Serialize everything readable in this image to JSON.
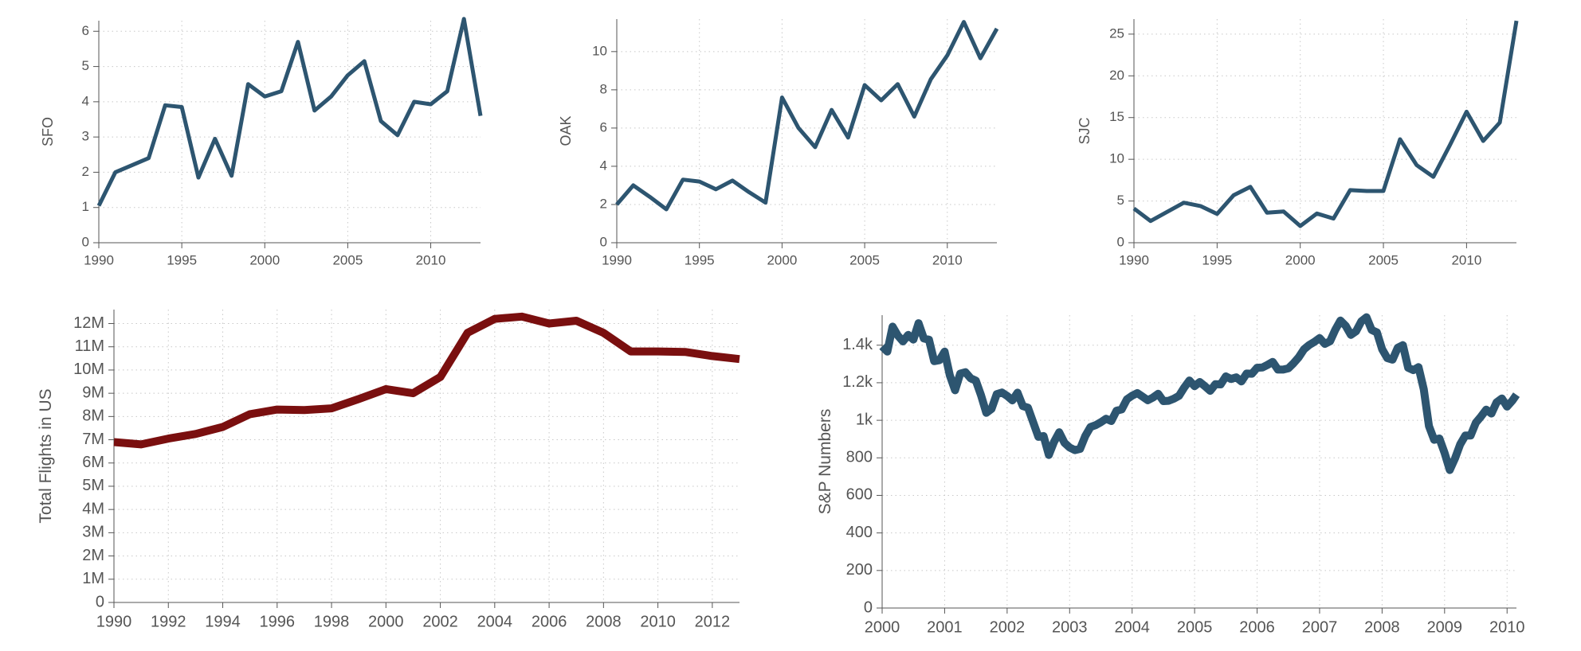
{
  "chart_data": [
    {
      "id": "sfo",
      "type": "line",
      "ylabel": "SFO",
      "xlim": [
        1990,
        2013
      ],
      "ylim": [
        0,
        6.3
      ],
      "xticks": [
        1990,
        1995,
        2000,
        2005,
        2010
      ],
      "xtick_labels": [
        "1990",
        "1995",
        "2000",
        "2005",
        "2010"
      ],
      "yticks": [
        0,
        1,
        2,
        3,
        4,
        5,
        6
      ],
      "ytick_labels": [
        "0",
        "1",
        "2",
        "3",
        "4",
        "5",
        "6"
      ],
      "grid": true,
      "color": "#2d5570",
      "x": [
        1990,
        1991,
        1992,
        1993,
        1994,
        1995,
        1996,
        1997,
        1998,
        1999,
        2000,
        2001,
        2002,
        2003,
        2004,
        2005,
        2006,
        2007,
        2008,
        2009,
        2010,
        2011,
        2012,
        2013
      ],
      "y": [
        1.05,
        2.0,
        2.2,
        2.4,
        3.9,
        3.85,
        1.85,
        2.95,
        1.9,
        4.5,
        4.15,
        4.3,
        5.7,
        3.75,
        4.15,
        4.75,
        5.15,
        3.45,
        3.05,
        4.0,
        3.93,
        4.3,
        6.35,
        3.6
      ]
    },
    {
      "id": "oak",
      "type": "line",
      "ylabel": "OAK",
      "xlim": [
        1990,
        2013
      ],
      "ylim": [
        0,
        11.7
      ],
      "xticks": [
        1990,
        1995,
        2000,
        2005,
        2010
      ],
      "xtick_labels": [
        "1990",
        "1995",
        "2000",
        "2005",
        "2010"
      ],
      "yticks": [
        0,
        2,
        4,
        6,
        8,
        10
      ],
      "ytick_labels": [
        "0",
        "2",
        "4",
        "6",
        "8",
        "10"
      ],
      "grid": true,
      "color": "#2d5570",
      "x": [
        1990,
        1991,
        1992,
        1993,
        1994,
        1995,
        1996,
        1997,
        1998,
        1999,
        2000,
        2001,
        2002,
        2003,
        2004,
        2005,
        2006,
        2007,
        2008,
        2009,
        2010,
        2011,
        2012,
        2013
      ],
      "y": [
        2.0,
        3.0,
        2.4,
        1.75,
        3.3,
        3.2,
        2.8,
        3.25,
        2.65,
        2.1,
        7.6,
        6.0,
        5.0,
        6.95,
        5.5,
        8.25,
        7.45,
        8.3,
        6.6,
        8.55,
        9.8,
        11.55,
        9.65,
        11.2
      ]
    },
    {
      "id": "sjc",
      "type": "line",
      "ylabel": "SJC",
      "xlim": [
        1990,
        2013
      ],
      "ylim": [
        0,
        26.8
      ],
      "xticks": [
        1990,
        1995,
        2000,
        2005,
        2010
      ],
      "xtick_labels": [
        "1990",
        "1995",
        "2000",
        "2005",
        "2010"
      ],
      "yticks": [
        0,
        5,
        10,
        15,
        20,
        25
      ],
      "ytick_labels": [
        "0",
        "5",
        "10",
        "15",
        "20",
        "25"
      ],
      "grid": true,
      "color": "#2d5570",
      "x": [
        1990,
        1991,
        1992,
        1993,
        1994,
        1995,
        1996,
        1997,
        1998,
        1999,
        2000,
        2001,
        2002,
        2003,
        2004,
        2005,
        2006,
        2007,
        2008,
        2009,
        2010,
        2011,
        2012,
        2013
      ],
      "y": [
        4.1,
        2.6,
        3.7,
        4.8,
        4.4,
        3.45,
        5.7,
        6.7,
        3.6,
        3.75,
        2.0,
        3.5,
        2.9,
        6.3,
        6.2,
        6.2,
        12.4,
        9.3,
        7.9,
        11.7,
        15.7,
        12.2,
        14.4,
        26.6
      ]
    },
    {
      "id": "us-flights",
      "type": "line",
      "ylabel": "Total Flights in US",
      "xlim": [
        1990,
        2013
      ],
      "ylim": [
        0,
        12.6
      ],
      "xticks": [
        1990,
        1992,
        1994,
        1996,
        1998,
        2000,
        2002,
        2004,
        2006,
        2008,
        2010,
        2012
      ],
      "xtick_labels": [
        "1990",
        "1992",
        "1994",
        "1996",
        "1998",
        "2000",
        "2002",
        "2004",
        "2006",
        "2008",
        "2010",
        "2012"
      ],
      "yticks": [
        0,
        1,
        2,
        3,
        4,
        5,
        6,
        7,
        8,
        9,
        10,
        11,
        12
      ],
      "ytick_labels": [
        "0",
        "1M",
        "2M",
        "3M",
        "4M",
        "5M",
        "6M",
        "7M",
        "8M",
        "9M",
        "10M",
        "11M",
        "12M"
      ],
      "grid": true,
      "color": "#7a0f0f",
      "x": [
        1990,
        1991,
        1992,
        1993,
        1994,
        1995,
        1996,
        1997,
        1998,
        1999,
        2000,
        2001,
        2002,
        2003,
        2004,
        2005,
        2006,
        2007,
        2008,
        2009,
        2010,
        2011,
        2012,
        2013
      ],
      "y": [
        6.9,
        6.8,
        7.05,
        7.25,
        7.55,
        8.1,
        8.3,
        8.28,
        8.35,
        8.75,
        9.18,
        9.0,
        9.7,
        11.6,
        12.2,
        12.3,
        12.0,
        12.12,
        11.6,
        10.8,
        10.8,
        10.78,
        10.6,
        10.47
      ]
    },
    {
      "id": "sp-numbers",
      "type": "line",
      "ylabel": "S&P Numbers",
      "xlim": [
        2000,
        2010.15
      ],
      "ylim": [
        0,
        1560
      ],
      "xticks": [
        2000,
        2001,
        2002,
        2003,
        2004,
        2005,
        2006,
        2007,
        2008,
        2009,
        2010
      ],
      "xtick_labels": [
        "2000",
        "2001",
        "2002",
        "2003",
        "2004",
        "2005",
        "2006",
        "2007",
        "2008",
        "2009",
        "2010"
      ],
      "yticks": [
        0,
        200,
        400,
        600,
        800,
        1000,
        1200,
        1400
      ],
      "ytick_labels": [
        "0",
        "200",
        "400",
        "600",
        "800",
        "1k",
        "1.2k",
        "1.4k"
      ],
      "grid": true,
      "color": "#2d5570",
      "x": [
        2000.0,
        2000.083,
        2000.167,
        2000.25,
        2000.333,
        2000.417,
        2000.5,
        2000.583,
        2000.667,
        2000.75,
        2000.833,
        2000.917,
        2001.0,
        2001.083,
        2001.167,
        2001.25,
        2001.333,
        2001.417,
        2001.5,
        2001.583,
        2001.667,
        2001.75,
        2001.833,
        2001.917,
        2002.0,
        2002.083,
        2002.167,
        2002.25,
        2002.333,
        2002.417,
        2002.5,
        2002.583,
        2002.667,
        2002.75,
        2002.833,
        2002.917,
        2003.0,
        2003.083,
        2003.167,
        2003.25,
        2003.333,
        2003.417,
        2003.5,
        2003.583,
        2003.667,
        2003.75,
        2003.833,
        2003.917,
        2004.0,
        2004.083,
        2004.167,
        2004.25,
        2004.333,
        2004.417,
        2004.5,
        2004.583,
        2004.667,
        2004.75,
        2004.833,
        2004.917,
        2005.0,
        2005.083,
        2005.167,
        2005.25,
        2005.333,
        2005.417,
        2005.5,
        2005.583,
        2005.667,
        2005.75,
        2005.833,
        2005.917,
        2006.0,
        2006.083,
        2006.167,
        2006.25,
        2006.333,
        2006.417,
        2006.5,
        2006.583,
        2006.667,
        2006.75,
        2006.833,
        2006.917,
        2007.0,
        2007.083,
        2007.167,
        2007.25,
        2007.333,
        2007.417,
        2007.5,
        2007.583,
        2007.667,
        2007.75,
        2007.833,
        2007.917,
        2008.0,
        2008.083,
        2008.167,
        2008.25,
        2008.333,
        2008.417,
        2008.5,
        2008.583,
        2008.667,
        2008.75,
        2008.833,
        2008.917,
        2009.0,
        2009.083,
        2009.167,
        2009.25,
        2009.333,
        2009.417,
        2009.5,
        2009.583,
        2009.667,
        2009.75,
        2009.833,
        2009.917,
        2010.0,
        2010.083,
        2010.15
      ],
      "y": [
        1394,
        1366,
        1499,
        1452,
        1420,
        1455,
        1430,
        1517,
        1436,
        1429,
        1315,
        1320,
        1366,
        1240,
        1160,
        1249,
        1256,
        1224,
        1211,
        1133,
        1040,
        1060,
        1139,
        1148,
        1130,
        1106,
        1147,
        1076,
        1067,
        990,
        912,
        916,
        815,
        885,
        936,
        880,
        855,
        841,
        848,
        916,
        964,
        974,
        990,
        1008,
        996,
        1051,
        1058,
        1112,
        1131,
        1145,
        1126,
        1107,
        1121,
        1141,
        1102,
        1104,
        1115,
        1130,
        1174,
        1212,
        1182,
        1204,
        1181,
        1157,
        1192,
        1191,
        1234,
        1220,
        1229,
        1207,
        1249,
        1248,
        1280,
        1281,
        1295,
        1311,
        1270,
        1270,
        1277,
        1304,
        1336,
        1378,
        1401,
        1418,
        1438,
        1407,
        1421,
        1482,
        1531,
        1503,
        1455,
        1474,
        1527,
        1549,
        1481,
        1468,
        1379,
        1331,
        1323,
        1386,
        1400,
        1280,
        1267,
        1283,
        1165,
        969,
        896,
        903,
        826,
        735,
        797,
        872,
        919,
        919,
        987,
        1020,
        1057,
        1036,
        1096,
        1116,
        1073,
        1104,
        1136
      ]
    }
  ]
}
